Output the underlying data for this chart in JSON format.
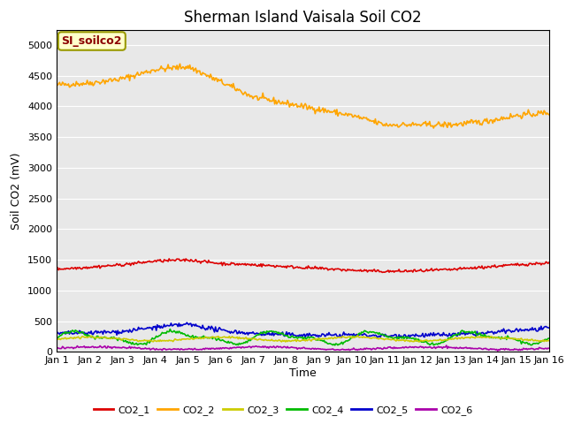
{
  "title": "Sherman Island Vaisala Soil CO2",
  "ylabel": "Soil CO2 (mV)",
  "xlabel": "Time",
  "xlim": [
    0,
    15
  ],
  "ylim": [
    0,
    5250
  ],
  "yticks": [
    0,
    500,
    1000,
    1500,
    2000,
    2500,
    3000,
    3500,
    4000,
    4500,
    5000
  ],
  "xtick_labels": [
    "Jan 1",
    "Jan 2",
    "Jan 3",
    "Jan 4",
    "Jan 5",
    "Jan 6",
    "Jan 7",
    "Jan 8",
    "Jan 9",
    "Jan 10",
    "Jan 11",
    "Jan 12",
    "Jan 13",
    "Jan 14",
    "Jan 15",
    "Jan 16"
  ],
  "bg_color": "#e8e8e8",
  "annotation_label": "SI_soilco2",
  "annotation_color": "#8B0000",
  "annotation_bg": "#ffffcc",
  "annotation_edge": "#999900",
  "series": {
    "CO2_1": {
      "color": "#dd0000",
      "lw": 1.2
    },
    "CO2_2": {
      "color": "#ffa500",
      "lw": 1.2
    },
    "CO2_3": {
      "color": "#cccc00",
      "lw": 1.2
    },
    "CO2_4": {
      "color": "#00bb00",
      "lw": 1.2
    },
    "CO2_5": {
      "color": "#0000cc",
      "lw": 1.2
    },
    "CO2_6": {
      "color": "#aa00aa",
      "lw": 1.2
    }
  },
  "title_fontsize": 12,
  "axis_label_fontsize": 9,
  "tick_fontsize": 8,
  "legend_fontsize": 8
}
